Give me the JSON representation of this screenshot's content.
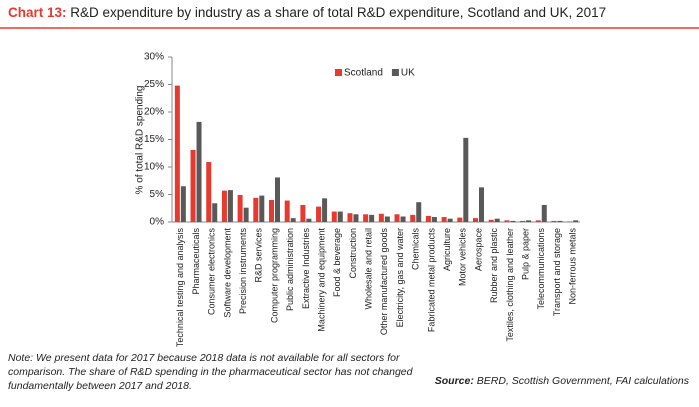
{
  "chart_data": {
    "type": "bar",
    "title_label": "Chart 13:",
    "title": "R&D expenditure by industry as a share of total R&D expenditure, Scotland and UK, 2017",
    "ylabel": "% of total R&D spending",
    "categories": [
      "Technical testing and analysis",
      "Pharmaceuticals",
      "Consumer electronics",
      "Software development",
      "Precision instruments",
      "R&D services",
      "Computer programming",
      "Public administration",
      "Extractive Industries",
      "Machinery and equipment",
      "Food & beverage",
      "Construction",
      "Wholesale and retail",
      "Other manufactured goods",
      "Electricity, gas and water",
      "Chemicals",
      "Fabricated metal products",
      "Agriculture",
      "Motor vehicles",
      "Aerospace",
      "Rubber and plastic",
      "Textiles, clothing and leather",
      "Pulp & paper",
      "Telecommunications",
      "Transport and storage",
      "Non-ferrous metals"
    ],
    "series": [
      {
        "name": "Scotland",
        "color": "#e8392f",
        "values": [
          24.8,
          13.1,
          10.9,
          5.7,
          4.9,
          4.4,
          4.0,
          3.9,
          3.1,
          2.8,
          1.9,
          1.6,
          1.4,
          1.5,
          1.4,
          1.3,
          1.1,
          0.9,
          0.8,
          0.7,
          0.4,
          0.3,
          0.2,
          0.3,
          0.2,
          0.1
        ]
      },
      {
        "name": "UK",
        "color": "#595959",
        "values": [
          6.5,
          18.2,
          3.4,
          5.8,
          2.6,
          4.8,
          8.1,
          0.7,
          0.6,
          4.3,
          1.9,
          1.4,
          1.3,
          1.0,
          1.0,
          3.6,
          0.9,
          0.6,
          15.3,
          6.3,
          0.6,
          0.2,
          0.3,
          3.1,
          0.2,
          0.3
        ]
      }
    ],
    "ylim": [
      0,
      30
    ],
    "yticks": [
      {
        "value": 0,
        "label": "0%"
      },
      {
        "value": 5,
        "label": "5%"
      },
      {
        "value": 10,
        "label": "10%"
      },
      {
        "value": 15,
        "label": "15%"
      },
      {
        "value": 20,
        "label": "20%"
      },
      {
        "value": 25,
        "label": "25%"
      },
      {
        "value": 30,
        "label": "30%"
      }
    ],
    "grid": false,
    "legend": "top",
    "note": "Note: We present data for 2017 because 2018 data is not available for all sectors for comparison. The share of R&D spending in the pharmaceutical sector has not changed fundamentally between 2017 and 2018.",
    "source_label": "Source:",
    "source": "BERD, Scottish Government, FAI calculations"
  }
}
